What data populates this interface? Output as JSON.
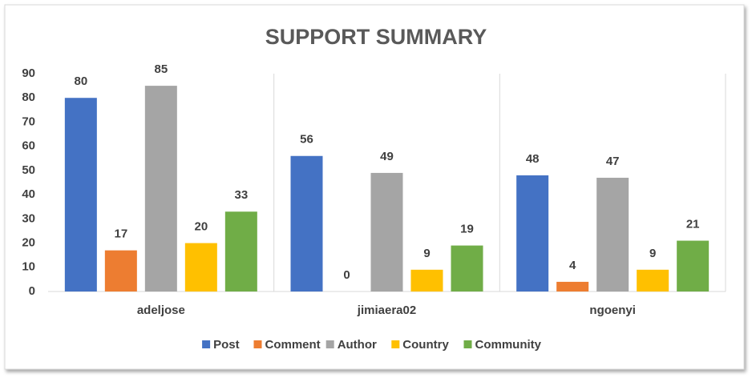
{
  "chart_data": {
    "type": "bar",
    "title": "SUPPORT SUMMARY",
    "categories": [
      "adeljose",
      "jimiaera02",
      "ngoenyi"
    ],
    "series": [
      {
        "name": "Post",
        "color": "#4472c4",
        "values": [
          80,
          56,
          48
        ]
      },
      {
        "name": "Comment",
        "color": "#ed7d31",
        "values": [
          17,
          0,
          4
        ]
      },
      {
        "name": "Author",
        "color": "#a5a5a5",
        "values": [
          85,
          49,
          47
        ]
      },
      {
        "name": "Country",
        "color": "#ffc000",
        "values": [
          20,
          9,
          9
        ]
      },
      {
        "name": "Community",
        "color": "#70ad47",
        "values": [
          33,
          19,
          21
        ]
      }
    ],
    "ylim": [
      0,
      90
    ],
    "yticks": [
      0,
      10,
      20,
      30,
      40,
      50,
      60,
      70,
      80,
      90
    ],
    "legend": "bottom"
  }
}
